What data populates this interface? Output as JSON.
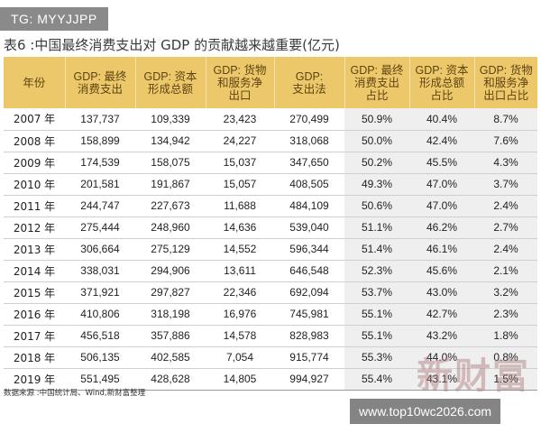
{
  "watermark_tag": "TG: MYYJJPP",
  "title": "表6 :中国最终消费支出对 GDP 的贡献越来越重要(亿元)",
  "headers": [
    [
      "年份"
    ],
    [
      "GDP: 最终",
      "消费支出"
    ],
    [
      "GDP: 资本",
      "形成总额"
    ],
    [
      "GDP: 货物",
      "和服务净",
      "出口"
    ],
    [
      "GDP:",
      "支出法"
    ],
    [
      "GDP: 最终",
      "消费支出",
      "占比"
    ],
    [
      "GDP: 资本",
      "形成总额",
      "占比"
    ],
    [
      "GDP: 货物",
      "和服务净",
      "出口占比"
    ]
  ],
  "rows": [
    [
      "2007 年",
      "137,737",
      "109,339",
      "23,423",
      "270,499",
      "50.9%",
      "40.4%",
      "8.7%"
    ],
    [
      "2008 年",
      "158,899",
      "134,942",
      "24,227",
      "318,068",
      "50.0%",
      "42.4%",
      "7.6%"
    ],
    [
      "2009 年",
      "174,539",
      "158,075",
      "15,037",
      "347,650",
      "50.2%",
      "45.5%",
      "4.3%"
    ],
    [
      "2010 年",
      "201,581",
      "191,867",
      "15,057",
      "408,505",
      "49.3%",
      "47.0%",
      "3.7%"
    ],
    [
      "2011 年",
      "244,747",
      "227,673",
      "11,688",
      "484,109",
      "50.6%",
      "47.0%",
      "2.4%"
    ],
    [
      "2012 年",
      "275,444",
      "248,960",
      "14,636",
      "539,040",
      "51.1%",
      "46.2%",
      "2.7%"
    ],
    [
      "2013 年",
      "306,664",
      "275,129",
      "14,552",
      "596,344",
      "51.4%",
      "46.1%",
      "2.4%"
    ],
    [
      "2014 年",
      "338,031",
      "294,906",
      "13,611",
      "646,548",
      "52.3%",
      "45.6%",
      "2.1%"
    ],
    [
      "2015 年",
      "371,921",
      "297,827",
      "22,346",
      "692,094",
      "53.7%",
      "43.0%",
      "3.2%"
    ],
    [
      "2016 年",
      "410,806",
      "318,198",
      "16,976",
      "745,981",
      "55.1%",
      "42.7%",
      "2.3%"
    ],
    [
      "2017 年",
      "456,518",
      "357,886",
      "14,578",
      "828,983",
      "55.1%",
      "43.2%",
      "1.8%"
    ],
    [
      "2018 年",
      "506,135",
      "402,585",
      "7,054",
      "915,774",
      "55.3%",
      "44.0%",
      "0.8%"
    ],
    [
      "2019 年",
      "551,495",
      "428,628",
      "14,805",
      "994,927",
      "55.4%",
      "43.1%",
      "1.5%"
    ]
  ],
  "source": "数据来源 :中国统计局、Wind,新财富整理",
  "watermark_brand": "新财富",
  "watermark_url": "www.top10wc2026.com",
  "colors": {
    "header_bg": "#edc86b",
    "header_text": "#5d4413",
    "share_col_bg": "#efefef"
  }
}
